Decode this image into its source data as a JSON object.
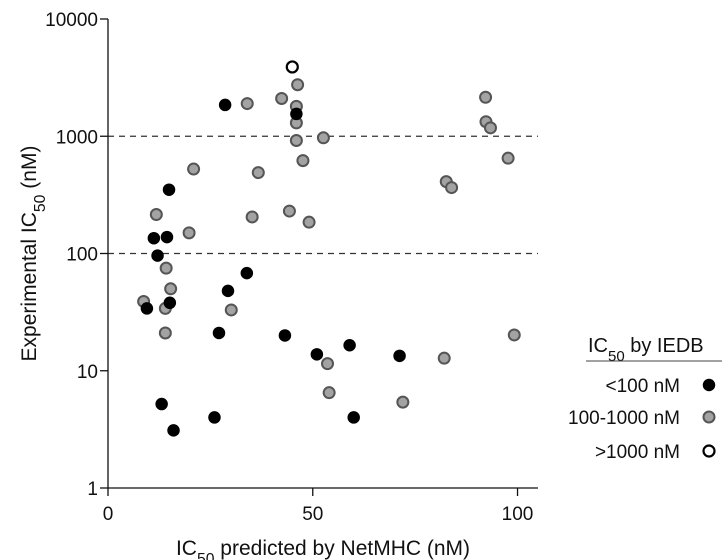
{
  "chart_data": {
    "type": "scatter",
    "xlabel": {
      "main": "IC",
      "sub": "50",
      "rest": " predicted by NetMHC (nM)"
    },
    "ylabel": {
      "main": "Experimental IC",
      "sub": "50",
      "rest": " (nM)"
    },
    "xlim": [
      0,
      105
    ],
    "ylim": [
      1,
      10000
    ],
    "y_scale": "log",
    "x_ticks": [
      0,
      50,
      100
    ],
    "y_ticks": [
      1,
      10,
      100,
      1000,
      10000
    ],
    "x_tick_labels": [
      "0",
      "50",
      "100"
    ],
    "y_tick_labels": [
      "1",
      "10",
      "100",
      "1000",
      "10000"
    ],
    "reference_lines_y": [
      100,
      1000
    ],
    "legend": {
      "title": {
        "main": "IC",
        "sub": "50",
        "rest": " by IEDB"
      },
      "position": "right"
    },
    "series": [
      {
        "name": "<100 nM",
        "style": "black",
        "points": [
          [
            28.6,
            1850
          ],
          [
            46.0,
            1550
          ],
          [
            14.9,
            350
          ],
          [
            11.2,
            135
          ],
          [
            14.4,
            138
          ],
          [
            12.1,
            96
          ],
          [
            33.9,
            68
          ],
          [
            29.3,
            48
          ],
          [
            15.1,
            38
          ],
          [
            9.5,
            34
          ],
          [
            27.1,
            21
          ],
          [
            43.2,
            20
          ],
          [
            51.0,
            13.8
          ],
          [
            59.0,
            16.5
          ],
          [
            71.2,
            13.4
          ],
          [
            13.1,
            5.2
          ],
          [
            26.0,
            4.0
          ],
          [
            60.0,
            4.0
          ],
          [
            16.0,
            3.1
          ]
        ]
      },
      {
        "name": "100-1000 nM",
        "style": "gray",
        "points": [
          [
            34.0,
            1900
          ],
          [
            42.4,
            2100
          ],
          [
            46.3,
            2750
          ],
          [
            46.0,
            1800
          ],
          [
            46.0,
            1300
          ],
          [
            46.0,
            920
          ],
          [
            52.6,
            970
          ],
          [
            47.6,
            620
          ],
          [
            36.7,
            490
          ],
          [
            20.9,
            525
          ],
          [
            44.3,
            230
          ],
          [
            35.2,
            205
          ],
          [
            49.1,
            185
          ],
          [
            11.8,
            215
          ],
          [
            19.8,
            150
          ],
          [
            14.2,
            75
          ],
          [
            15.3,
            50
          ],
          [
            8.7,
            39
          ],
          [
            14.0,
            34
          ],
          [
            30.1,
            33
          ],
          [
            14.0,
            21
          ],
          [
            53.6,
            11.5
          ],
          [
            54.0,
            6.5
          ],
          [
            72.0,
            5.4
          ],
          [
            82.1,
            12.8
          ],
          [
            99.2,
            20.2
          ],
          [
            92.2,
            2150
          ],
          [
            92.3,
            1330
          ],
          [
            93.4,
            1180
          ],
          [
            97.7,
            650
          ],
          [
            82.6,
            410
          ],
          [
            83.9,
            365
          ]
        ]
      },
      {
        "name": ">1000 nM",
        "style": "open",
        "points": [
          [
            45.0,
            3900
          ]
        ]
      }
    ]
  }
}
